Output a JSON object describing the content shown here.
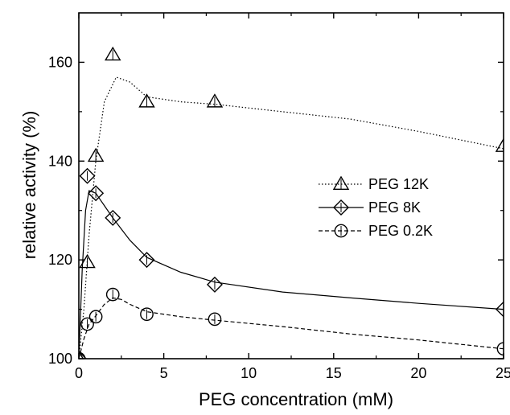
{
  "chart_data": {
    "type": "scatter",
    "title": "",
    "xlabel": "PEG concentration (mM)",
    "ylabel": "relative activity  (%)",
    "xlim": [
      0,
      25
    ],
    "ylim": [
      100,
      170
    ],
    "xticks": [
      0,
      5,
      10,
      15,
      20,
      25
    ],
    "yticks": [
      100,
      120,
      140,
      160
    ],
    "grid": false,
    "legend_position": "center-right",
    "series": [
      {
        "name": "PEG 12K",
        "marker": "triangle",
        "line_style": "dotted",
        "points": [
          [
            0,
            100
          ],
          [
            0.5,
            119.5
          ],
          [
            1,
            141
          ],
          [
            2,
            161.5
          ],
          [
            4,
            152
          ],
          [
            8,
            152
          ],
          [
            25,
            143
          ]
        ],
        "curve": [
          [
            0,
            100
          ],
          [
            0.3,
            110
          ],
          [
            0.6,
            125
          ],
          [
            1,
            140
          ],
          [
            1.5,
            152
          ],
          [
            2.2,
            157
          ],
          [
            3,
            156
          ],
          [
            4,
            153
          ],
          [
            6,
            152
          ],
          [
            8,
            151.5
          ],
          [
            12,
            150
          ],
          [
            16,
            148.5
          ],
          [
            20,
            146
          ],
          [
            25,
            142.5
          ]
        ]
      },
      {
        "name": "PEG 8K",
        "marker": "diamond",
        "line_style": "solid",
        "points": [
          [
            0,
            100
          ],
          [
            0.5,
            137
          ],
          [
            1,
            133.5
          ],
          [
            2,
            128.5
          ],
          [
            4,
            120
          ],
          [
            8,
            115
          ],
          [
            25,
            110
          ]
        ],
        "curve": [
          [
            0,
            100
          ],
          [
            0.2,
            118
          ],
          [
            0.4,
            130
          ],
          [
            0.6,
            134
          ],
          [
            1,
            133.5
          ],
          [
            1.5,
            131
          ],
          [
            2,
            128.5
          ],
          [
            3,
            124
          ],
          [
            4,
            120.5
          ],
          [
            6,
            117.5
          ],
          [
            8,
            115.5
          ],
          [
            12,
            113.5
          ],
          [
            16,
            112.3
          ],
          [
            20,
            111.2
          ],
          [
            25,
            110
          ]
        ]
      },
      {
        "name": "PEG 0.2K",
        "marker": "circle",
        "line_style": "dashed",
        "points": [
          [
            0,
            100
          ],
          [
            0.5,
            107
          ],
          [
            1,
            108.5
          ],
          [
            2,
            113
          ],
          [
            4,
            109
          ],
          [
            8,
            108
          ],
          [
            25,
            102
          ]
        ],
        "curve": [
          [
            0,
            100
          ],
          [
            0.3,
            104
          ],
          [
            0.6,
            107
          ],
          [
            1,
            108.7
          ],
          [
            1.5,
            111
          ],
          [
            2,
            112.3
          ],
          [
            2.5,
            112
          ],
          [
            3,
            111
          ],
          [
            4,
            109.5
          ],
          [
            6,
            108.5
          ],
          [
            8,
            107.8
          ],
          [
            12,
            106.5
          ],
          [
            16,
            105
          ],
          [
            20,
            103.8
          ],
          [
            25,
            102
          ]
        ]
      }
    ]
  },
  "colors": {
    "axis": "#000000",
    "series": "#000000"
  }
}
